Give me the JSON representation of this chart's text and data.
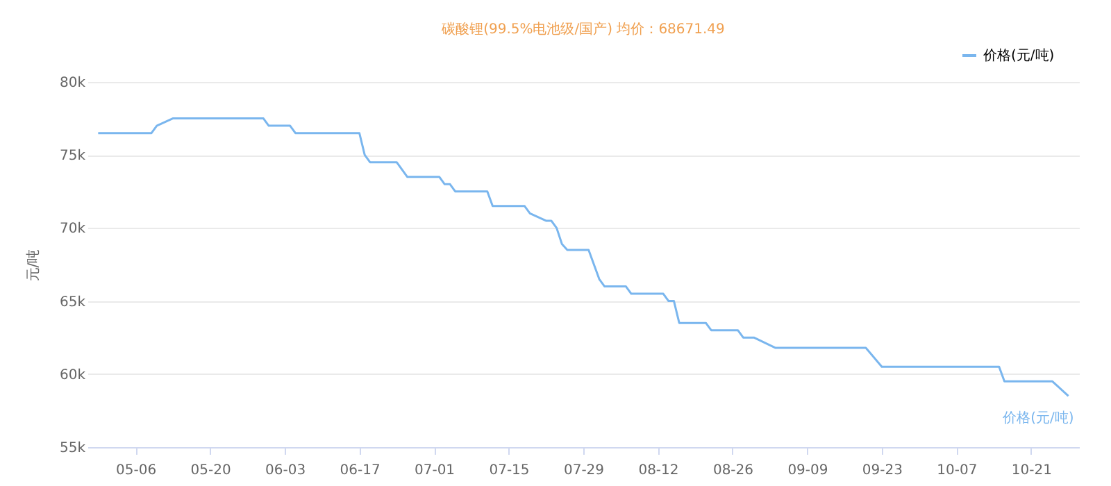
{
  "chart_data": {
    "type": "line",
    "title": "碳酸锂(99.5%电池级/国产) 均价：68671.49",
    "ylabel": "元/吨",
    "x": [
      "--04-29",
      "--05-09",
      "--05-10",
      "--05-13",
      "--05-30",
      "--05-31",
      "--06-04",
      "--06-05",
      "--06-17",
      "--06-18",
      "--06-19",
      "--06-24",
      "--06-26",
      "--07-02",
      "--07-03",
      "--07-04",
      "--07-05",
      "--07-11",
      "--07-12",
      "--07-18",
      "--07-19",
      "--07-22",
      "--07-23",
      "--07-24",
      "--07-25",
      "--07-26",
      "--07-30",
      "--08-01",
      "--08-02",
      "--08-06",
      "--08-07",
      "--08-13",
      "--08-14",
      "--08-15",
      "--08-16",
      "--08-21",
      "--08-22",
      "--08-27",
      "--08-28",
      "--08-30",
      "--09-03",
      "--09-20",
      "--09-23",
      "--10-15",
      "--10-16",
      "--10-25",
      "--10-28"
    ],
    "series": [
      {
        "name": "价格(元/吨)",
        "color": "#7ab6ee",
        "values": [
          76500,
          76500,
          77000,
          77500,
          77500,
          77000,
          77000,
          76500,
          76500,
          75000,
          74500,
          74500,
          73500,
          73500,
          73000,
          73000,
          72500,
          72500,
          71500,
          71500,
          71000,
          70500,
          70500,
          70000,
          68900,
          68500,
          68500,
          66500,
          66000,
          66000,
          65500,
          65500,
          65000,
          65000,
          63500,
          63500,
          63000,
          63000,
          62500,
          62500,
          61800,
          61800,
          60500,
          60500,
          59500,
          59500,
          58500
        ]
      }
    ],
    "xlim": [
      "--04-27",
      "--10-30"
    ],
    "xticks": [
      {
        "value": "--05-06",
        "label": "05-06"
      },
      {
        "value": "--05-20",
        "label": "05-20"
      },
      {
        "value": "--06-03",
        "label": "06-03"
      },
      {
        "value": "--06-17",
        "label": "06-17"
      },
      {
        "value": "--07-01",
        "label": "07-01"
      },
      {
        "value": "--07-15",
        "label": "07-15"
      },
      {
        "value": "--07-29",
        "label": "07-29"
      },
      {
        "value": "--08-12",
        "label": "08-12"
      },
      {
        "value": "--08-26",
        "label": "08-26"
      },
      {
        "value": "--09-09",
        "label": "09-09"
      },
      {
        "value": "--09-23",
        "label": "09-23"
      },
      {
        "value": "--10-07",
        "label": "10-07"
      },
      {
        "value": "--10-21",
        "label": "10-21"
      }
    ],
    "ylim": [
      55000,
      80000
    ],
    "yticks": [
      {
        "value": 55000,
        "label": "55k"
      },
      {
        "value": 60000,
        "label": "60k"
      },
      {
        "value": 65000,
        "label": "65k"
      },
      {
        "value": 70000,
        "label": "70k"
      },
      {
        "value": 75000,
        "label": "75k"
      },
      {
        "value": 80000,
        "label": "80k"
      }
    ],
    "grid": "y",
    "legend": "top right",
    "marker": "none",
    "line_style": "solid"
  }
}
